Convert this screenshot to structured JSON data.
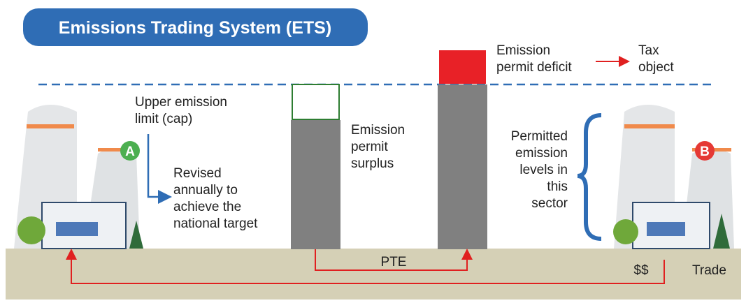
{
  "title": "Emissions Trading System (ETS)",
  "deficit": [
    "Emission",
    "permit deficit"
  ],
  "tax": [
    "Tax",
    "object"
  ],
  "cap": [
    "Upper emission",
    "limit (cap)"
  ],
  "revised": [
    "Revised",
    "annually to",
    "achieve the",
    "national target"
  ],
  "surplus": [
    "Emission",
    "permit",
    "surplus"
  ],
  "permitted": [
    "Permitted",
    "emission",
    "levels in",
    "this",
    "sector"
  ],
  "plant_a": "A",
  "plant_b": "B",
  "pte": "PTE",
  "money": "$$",
  "trade": "Trade"
}
